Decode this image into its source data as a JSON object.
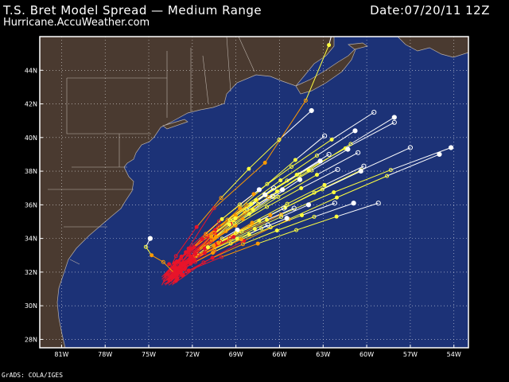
{
  "header": {
    "title": "T.S. Bret Model Spread — Medium Range",
    "subtitle": "Hurricane.AccuWeather.com",
    "date": "Date:07/20/11 12Z"
  },
  "credit": "GrADS: COLA/IGES",
  "colors": {
    "ocean": "#1c3277",
    "land": "#4a3a30",
    "border": "#ffffff",
    "early_track": "#e8142a",
    "mid_track": "#ff9a00",
    "late_track": "#ffff40",
    "end_track": "#ffffff"
  },
  "map": {
    "lon_range": [
      -82.5,
      -53
    ],
    "lat_range": [
      27.5,
      46
    ],
    "lon_ticks": [
      {
        "lon": -81,
        "label": "81W"
      },
      {
        "lon": -78,
        "label": "78W"
      },
      {
        "lon": -75,
        "label": "75W"
      },
      {
        "lon": -72,
        "label": "72W"
      },
      {
        "lon": -69,
        "label": "69W"
      },
      {
        "lon": -66,
        "label": "66W"
      },
      {
        "lon": -63,
        "label": "63W"
      },
      {
        "lon": -60,
        "label": "60W"
      },
      {
        "lon": -57,
        "label": "57W"
      },
      {
        "lon": -54,
        "label": "54W"
      }
    ],
    "lat_ticks": [
      {
        "lat": 28,
        "label": "28N"
      },
      {
        "lat": 30,
        "label": "30N"
      },
      {
        "lat": 32,
        "label": "32N"
      },
      {
        "lat": 34,
        "label": "34N"
      },
      {
        "lat": 36,
        "label": "36N"
      },
      {
        "lat": 38,
        "label": "38N"
      },
      {
        "lat": 40,
        "label": "40N"
      },
      {
        "lat": 42,
        "label": "42N"
      },
      {
        "lat": 44,
        "label": "44N"
      }
    ]
  },
  "storm_start": {
    "lon": -73.7,
    "lat": 31.5
  },
  "track_endpoints": [
    {
      "lon": -63.8,
      "lat": 41.6
    },
    {
      "lon": -59.5,
      "lat": 41.5
    },
    {
      "lon": -58.1,
      "lat": 41.2
    },
    {
      "lon": -58.1,
      "lat": 40.9
    },
    {
      "lon": -60.8,
      "lat": 40.4
    },
    {
      "lon": -62.9,
      "lat": 40.1
    },
    {
      "lon": -54.2,
      "lat": 39.4
    },
    {
      "lon": -57.0,
      "lat": 39.4
    },
    {
      "lon": -55.0,
      "lat": 39.0
    },
    {
      "lon": -60.6,
      "lat": 39.1
    },
    {
      "lon": -61.3,
      "lat": 39.3
    },
    {
      "lon": -62.6,
      "lat": 39.0
    },
    {
      "lon": -63.2,
      "lat": 38.6
    },
    {
      "lon": -60.2,
      "lat": 38.3
    },
    {
      "lon": -60.4,
      "lat": 38.0
    },
    {
      "lon": -62.0,
      "lat": 38.1
    },
    {
      "lon": -64.6,
      "lat": 37.5
    },
    {
      "lon": -59.2,
      "lat": 36.1
    },
    {
      "lon": -60.9,
      "lat": 36.1
    },
    {
      "lon": -62.2,
      "lat": 36.1
    },
    {
      "lon": -64.0,
      "lat": 36.0
    },
    {
      "lon": -65.0,
      "lat": 35.8
    },
    {
      "lon": -65.5,
      "lat": 35.2
    },
    {
      "lon": -66.8,
      "lat": 34.8
    },
    {
      "lon": -68.9,
      "lat": 34.5
    },
    {
      "lon": -65.7,
      "lat": 35.8
    },
    {
      "lon": -67.0,
      "lat": 36.6
    },
    {
      "lon": -66.4,
      "lat": 37.0
    },
    {
      "lon": -65.8,
      "lat": 36.9
    },
    {
      "lon": -66.5,
      "lat": 36.5
    },
    {
      "lon": -67.4,
      "lat": 36.9
    }
  ],
  "stalled_track": [
    {
      "lon": -73.2,
      "lat": 31.9
    },
    {
      "lon": -74.0,
      "lat": 32.6
    },
    {
      "lon": -74.8,
      "lat": 33.0
    },
    {
      "lon": -75.2,
      "lat": 33.5
    },
    {
      "lon": -74.9,
      "lat": 34.0
    }
  ],
  "northward_track": [
    {
      "lon": -70.5,
      "lat": 35.8
    },
    {
      "lon": -67.0,
      "lat": 38.5
    },
    {
      "lon": -64.2,
      "lat": 42.2
    },
    {
      "lon": -62.6,
      "lat": 45.5
    },
    {
      "lon": -62.0,
      "lat": 47.5
    }
  ]
}
